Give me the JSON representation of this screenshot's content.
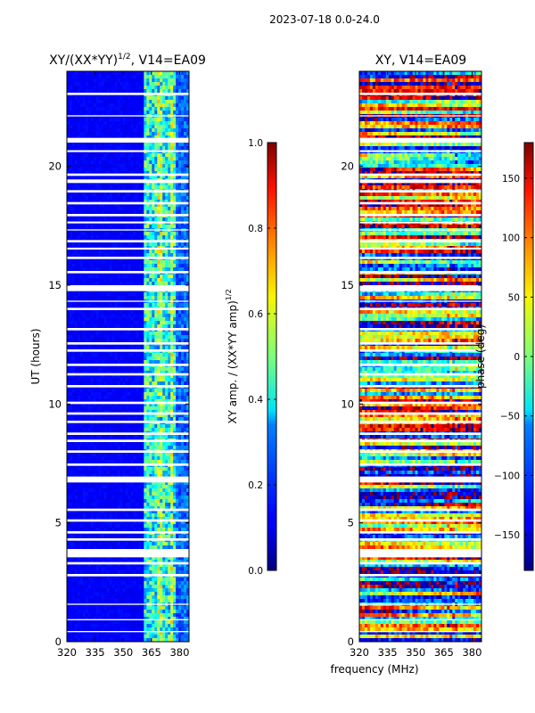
{
  "chart_data": {
    "suptitle": "2023-07-18 0.0-24.0",
    "xlabel": "frequency (MHz)",
    "panels": [
      {
        "type": "heatmap",
        "title": "XY/(XX*YY)",
        "title_exponent": "1/2",
        "title_suffix": ", V14=EA09",
        "ylabel": "UT (hours)",
        "xlim": [
          320,
          385
        ],
        "ylim": [
          0,
          24
        ],
        "xticks": [
          320,
          335,
          350,
          365,
          380
        ],
        "yticks": [
          0,
          5,
          10,
          15,
          20
        ],
        "colorbar": {
          "label": "XY amp. / (XX*YY amp)",
          "label_exponent": "1/2",
          "range": [
            0.0,
            1.0
          ],
          "ticks": [
            "0.0",
            "0.2",
            "0.4",
            "0.6",
            "0.8",
            "1.0"
          ],
          "tick_values": [
            0.0,
            0.2,
            0.4,
            0.6,
            0.8,
            1.0
          ],
          "colormap": "jet"
        }
      },
      {
        "type": "heatmap",
        "title": "XY, V14=EA09",
        "ylabel": "",
        "xlim": [
          320,
          385
        ],
        "ylim": [
          0,
          24
        ],
        "xticks": [
          320,
          335,
          350,
          365,
          380
        ],
        "yticks": [
          0,
          5,
          10,
          15,
          20
        ],
        "colorbar": {
          "label": "phase (deg)",
          "range": [
            -180,
            180
          ],
          "ticks": [
            "−150",
            "−100",
            "−50",
            "0",
            "50",
            "100",
            "150"
          ],
          "tick_values": [
            -150,
            -100,
            -50,
            0,
            50,
            100,
            150
          ],
          "colormap": "jet"
        }
      }
    ],
    "flagged_gaps_hours": [
      [
        23.0,
        23.1
      ],
      [
        22.1,
        22.15
      ],
      [
        21.0,
        21.2
      ],
      [
        20.6,
        20.68
      ],
      [
        19.6,
        19.7
      ],
      [
        19.3,
        19.45
      ],
      [
        18.9,
        19.0
      ],
      [
        18.4,
        18.5
      ],
      [
        17.9,
        18.0
      ],
      [
        17.6,
        17.68
      ],
      [
        17.3,
        17.35
      ],
      [
        16.8,
        16.9
      ],
      [
        16.5,
        16.58
      ],
      [
        16.1,
        16.2
      ],
      [
        15.5,
        15.6
      ],
      [
        14.75,
        15.0
      ],
      [
        14.3,
        14.35
      ],
      [
        13.95,
        14.05
      ],
      [
        13.1,
        13.2
      ],
      [
        12.5,
        12.6
      ],
      [
        12.2,
        12.3
      ],
      [
        11.6,
        11.7
      ],
      [
        11.2,
        11.3
      ],
      [
        10.7,
        10.8
      ],
      [
        10.0,
        10.1
      ],
      [
        9.55,
        9.65
      ],
      [
        9.2,
        9.3
      ],
      [
        8.7,
        8.8
      ],
      [
        8.4,
        8.5
      ],
      [
        7.95,
        8.05
      ],
      [
        7.4,
        7.5
      ],
      [
        6.7,
        6.95
      ],
      [
        5.5,
        5.6
      ],
      [
        5.05,
        5.15
      ],
      [
        4.55,
        4.65
      ],
      [
        4.25,
        4.35
      ],
      [
        3.55,
        3.9
      ],
      [
        3.25,
        3.35
      ],
      [
        2.75,
        2.85
      ],
      [
        1.55,
        1.6
      ],
      [
        0.9,
        0.95
      ],
      [
        0.4,
        0.45
      ]
    ]
  }
}
